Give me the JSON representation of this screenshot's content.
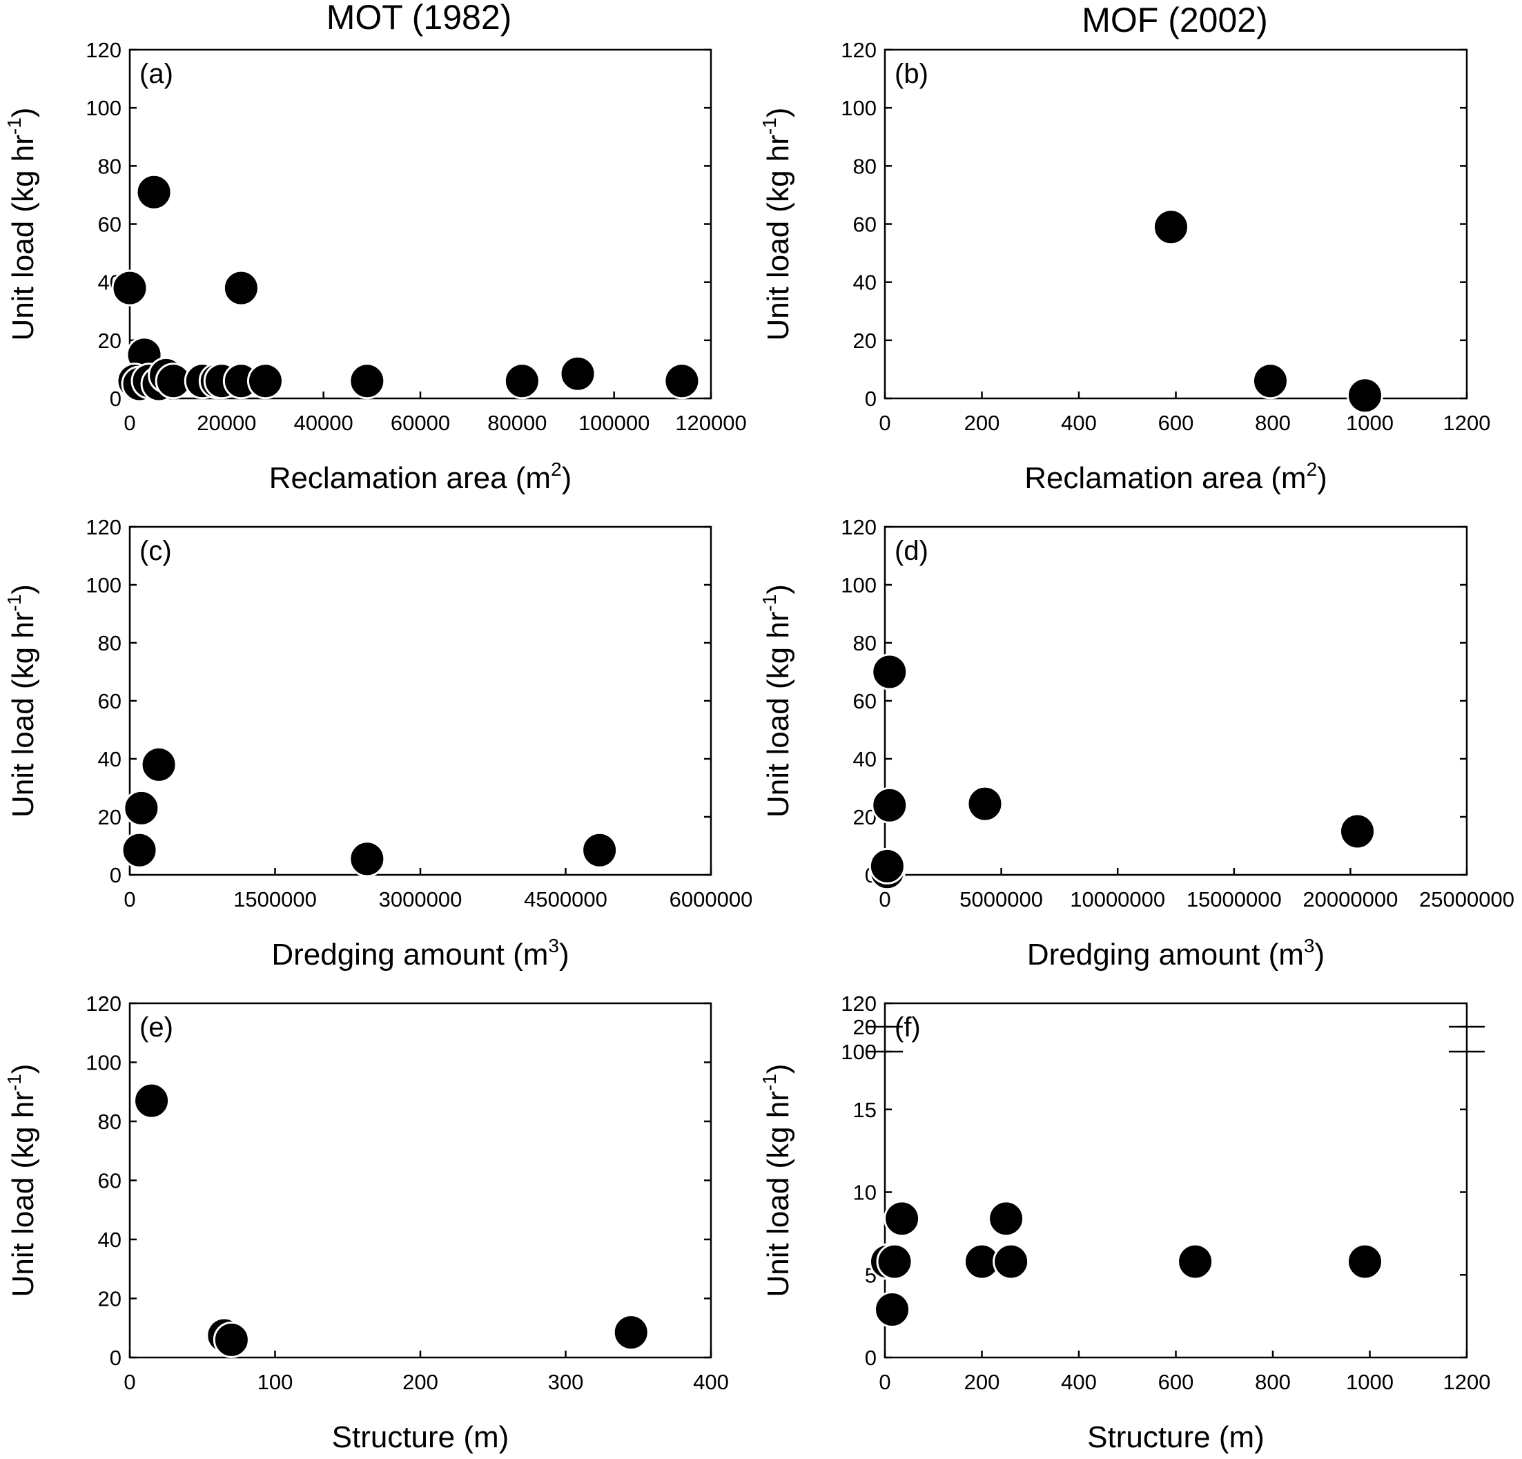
{
  "column_titles": [
    "MOT (1982)",
    "MOF (2002)"
  ],
  "chart_data": [
    {
      "type": "scatter",
      "panel": "(a)",
      "column": "MOT (1982)",
      "xlabel": "Reclamation area (m",
      "xlabel_sup": "2",
      "xlabel_suffix": ")",
      "ylabel": "Unit load (kg hr",
      "ylabel_sup": "-1",
      "ylabel_suffix": ")",
      "xlim": [
        0,
        120000
      ],
      "ylim": [
        0,
        120
      ],
      "xticks": [
        0,
        20000,
        40000,
        60000,
        80000,
        100000,
        120000
      ],
      "yticks": [
        0,
        20,
        40,
        60,
        80,
        100,
        120
      ],
      "x": [
        0,
        5000,
        23000,
        3000,
        1000,
        2000,
        4000,
        6000,
        7500,
        9000,
        15000,
        18000,
        19000,
        23000,
        28000,
        49000,
        81000,
        92500,
        114000
      ],
      "y": [
        38,
        71,
        38,
        15,
        6,
        5,
        6,
        5,
        8,
        6,
        6,
        6,
        6,
        6,
        6,
        6,
        6,
        8.5,
        6
      ]
    },
    {
      "type": "scatter",
      "panel": "(b)",
      "column": "MOF (2002)",
      "xlabel": "Reclamation area (m",
      "xlabel_sup": "2",
      "xlabel_suffix": ")",
      "ylabel": "Unit load (kg hr",
      "ylabel_sup": "-1",
      "ylabel_suffix": ")",
      "xlim": [
        0,
        1200
      ],
      "ylim": [
        0,
        120
      ],
      "xticks": [
        0,
        200,
        400,
        600,
        800,
        1000,
        1200
      ],
      "yticks": [
        0,
        20,
        40,
        60,
        80,
        100,
        120
      ],
      "x": [
        590,
        795,
        990
      ],
      "y": [
        59,
        6,
        1
      ]
    },
    {
      "type": "scatter",
      "panel": "(c)",
      "column": "MOT (1982)",
      "xlabel": "Dredging amount (m",
      "xlabel_sup": "3",
      "xlabel_suffix": ")",
      "ylabel": "Unit load (kg hr",
      "ylabel_sup": "-1",
      "ylabel_suffix": ")",
      "xlim": [
        0,
        6000000
      ],
      "ylim": [
        0,
        120
      ],
      "xticks": [
        0,
        1500000,
        3000000,
        4500000,
        6000000
      ],
      "yticks": [
        0,
        20,
        40,
        60,
        80,
        100,
        120
      ],
      "x": [
        300000,
        120000,
        100000,
        2450000,
        4850000
      ],
      "y": [
        38,
        23,
        8.5,
        5.5,
        8.5
      ]
    },
    {
      "type": "scatter",
      "panel": "(d)",
      "column": "MOF (2002)",
      "xlabel": "Dredging amount (m",
      "xlabel_sup": "3",
      "xlabel_suffix": ")",
      "ylabel": "Unit load (kg hr",
      "ylabel_sup": "-1",
      "ylabel_suffix": ")",
      "xlim": [
        0,
        25000000
      ],
      "ylim": [
        0,
        120
      ],
      "xticks": [
        0,
        5000000,
        10000000,
        15000000,
        20000000,
        25000000
      ],
      "yticks": [
        0,
        20,
        40,
        60,
        80,
        100,
        120
      ],
      "x": [
        200000,
        200000,
        4300000,
        20300000,
        100000,
        100000
      ],
      "y": [
        70,
        24,
        24.5,
        15,
        1,
        3
      ]
    },
    {
      "type": "scatter",
      "panel": "(e)",
      "column": "MOT (1982)",
      "xlabel": "Structure (m)",
      "xlabel_sup": "",
      "xlabel_suffix": "",
      "ylabel": "Unit load (kg hr",
      "ylabel_sup": "-1",
      "ylabel_suffix": ")",
      "xlim": [
        0,
        400
      ],
      "ylim": [
        0,
        120
      ],
      "xticks": [
        0,
        100,
        200,
        300,
        400
      ],
      "yticks": [
        0,
        20,
        40,
        60,
        80,
        100,
        120
      ],
      "x": [
        15,
        65,
        70,
        345
      ],
      "y": [
        87,
        7.5,
        6,
        8.5
      ]
    },
    {
      "type": "scatter",
      "panel": "(f)",
      "column": "MOF (2002)",
      "xlabel": "Structure (m)",
      "xlabel_sup": "",
      "xlabel_suffix": "",
      "ylabel": "Unit load (kg hr",
      "ylabel_sup": "-1",
      "ylabel_suffix": ")",
      "xlim": [
        0,
        1200
      ],
      "ylim": [
        0,
        20
      ],
      "y_axis_break": {
        "upper_ticks": [
          100,
          120
        ],
        "break_between": [
          20,
          100
        ]
      },
      "xticks": [
        0,
        200,
        400,
        600,
        800,
        1000,
        1200
      ],
      "yticks": [
        0,
        5,
        10,
        15,
        20
      ],
      "x": [
        5,
        20,
        35,
        200,
        250,
        260,
        640,
        990,
        15
      ],
      "y": [
        5.8,
        5.8,
        8.4,
        5.8,
        8.4,
        5.8,
        5.8,
        5.8,
        2.9
      ]
    }
  ]
}
